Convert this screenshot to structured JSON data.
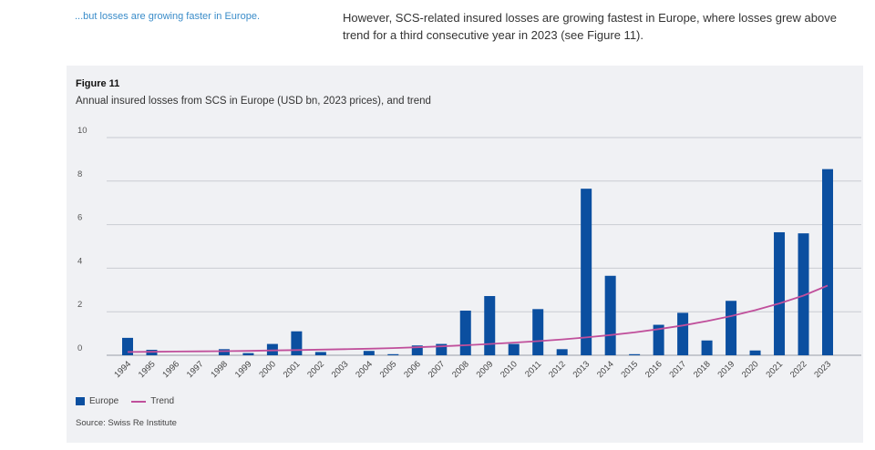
{
  "header": {
    "side_note": "...but losses are growing faster in Europe.",
    "lead_text": "However, SCS-related insured losses are growing fastest in Europe, where losses grew above trend for a third consecutive year in 2023 (see Figure 11)."
  },
  "figure": {
    "label": "Figure 11",
    "title": "Annual insured losses from SCS in Europe (USD bn, 2023 prices), and trend",
    "source": "Source: Swiss Re Institute"
  },
  "colors": {
    "bar": "#0b4fa0",
    "trend": "#c04f9b",
    "panel_bg": "#f0f1f4",
    "side_note": "#3a8cc9"
  },
  "chart_data": {
    "type": "bar",
    "title": "Annual insured losses from SCS in Europe (USD bn, 2023 prices), and trend",
    "xlabel": "",
    "ylabel": "",
    "ylim": [
      0,
      10
    ],
    "yticks": [
      0,
      2,
      4,
      6,
      8,
      10
    ],
    "grid": true,
    "legend_position": "bottom-left",
    "categories": [
      "1994",
      "1995",
      "1996",
      "1997",
      "1998",
      "1999",
      "2000",
      "2001",
      "2002",
      "2003",
      "2004",
      "2005",
      "2006",
      "2007",
      "2008",
      "2009",
      "2010",
      "2011",
      "2012",
      "2013",
      "2014",
      "2015",
      "2016",
      "2017",
      "2018",
      "2019",
      "2020",
      "2021",
      "2022",
      "2023"
    ],
    "series": [
      {
        "name": "Europe",
        "type": "bar",
        "values": [
          0.8,
          0.25,
          0.0,
          0.0,
          0.28,
          0.1,
          0.52,
          1.1,
          0.15,
          0.0,
          0.2,
          0.05,
          0.45,
          0.52,
          2.05,
          2.72,
          0.52,
          2.12,
          0.28,
          7.65,
          3.65,
          0.05,
          1.4,
          1.95,
          0.68,
          2.5,
          0.22,
          5.65,
          5.6,
          8.55
        ]
      },
      {
        "name": "Trend",
        "type": "line",
        "values": [
          0.15,
          0.16,
          0.17,
          0.18,
          0.19,
          0.2,
          0.22,
          0.24,
          0.26,
          0.28,
          0.3,
          0.33,
          0.37,
          0.41,
          0.46,
          0.52,
          0.58,
          0.65,
          0.73,
          0.82,
          0.93,
          1.05,
          1.2,
          1.37,
          1.57,
          1.8,
          2.07,
          2.38,
          2.74,
          3.2
        ]
      }
    ]
  }
}
